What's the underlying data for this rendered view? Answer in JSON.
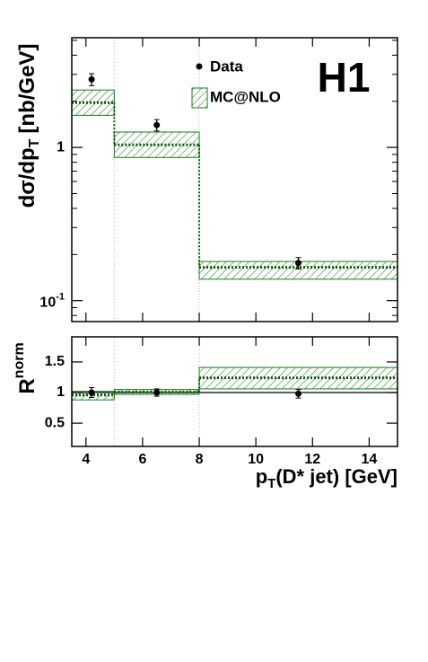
{
  "chart_data": [
    {
      "type": "step_band",
      "log_y": true,
      "y_label": {
        "text": "dσ/dp",
        "sub": "T",
        "unit": "[nb/GeV]"
      },
      "annotation": "H1",
      "legend": "top-center",
      "xlim": [
        3.5,
        15
      ],
      "ylim": [
        0.073,
        5.2
      ],
      "xticks": [
        4,
        6,
        8,
        10,
        12,
        14
      ],
      "yticks": [
        1,
        {
          "value": 0.1,
          "label": "10",
          "exponent": "-1"
        }
      ],
      "yminor_ticks": [
        0.08,
        0.09,
        0.2,
        0.3,
        0.4,
        0.5,
        0.6,
        0.7,
        0.8,
        0.9,
        2,
        3,
        4,
        5
      ],
      "series": [
        {
          "name": "Data",
          "kind": "points",
          "color": "#000000",
          "x": [
            4.2,
            6.5,
            11.5
          ],
          "values": [
            2.78,
            1.4,
            0.176
          ],
          "errors": [
            0.25,
            0.12,
            0.015
          ]
        },
        {
          "name": "MC@NLO",
          "kind": "band",
          "color": "#1a7a1a",
          "bins": [
            3.5,
            5,
            8,
            15
          ],
          "values": [
            1.96,
            1.04,
            0.165
          ],
          "band_low": [
            1.62,
            0.86,
            0.138
          ],
          "band_high": [
            2.37,
            1.26,
            0.18
          ]
        }
      ]
    },
    {
      "type": "step_band",
      "log_y": false,
      "y_label": {
        "text": "R",
        "sup": "norm"
      },
      "x_label": {
        "text": "p",
        "sub": "T",
        "rest": "(D* jet)  [GeV]"
      },
      "xlim": [
        3.5,
        15
      ],
      "ylim": [
        0.12,
        1.91
      ],
      "xticks": [
        4,
        6,
        8,
        10,
        12,
        14
      ],
      "yticks": [
        0.5,
        1,
        1.5
      ],
      "reference_line": 1,
      "series": [
        {
          "kind": "points",
          "color": "#000000",
          "x": [
            4.2,
            6.5,
            11.5
          ],
          "values": [
            1.0,
            1.0,
            0.98
          ],
          "errors": [
            0.08,
            0.06,
            0.07
          ]
        },
        {
          "kind": "band",
          "color": "#1a7a1a",
          "bins": [
            3.5,
            5,
            8,
            15
          ],
          "values": [
            0.96,
            1.01,
            1.24
          ],
          "band_low": [
            0.88,
            0.97,
            1.06
          ],
          "band_high": [
            1.02,
            1.05,
            1.41
          ]
        }
      ]
    }
  ]
}
